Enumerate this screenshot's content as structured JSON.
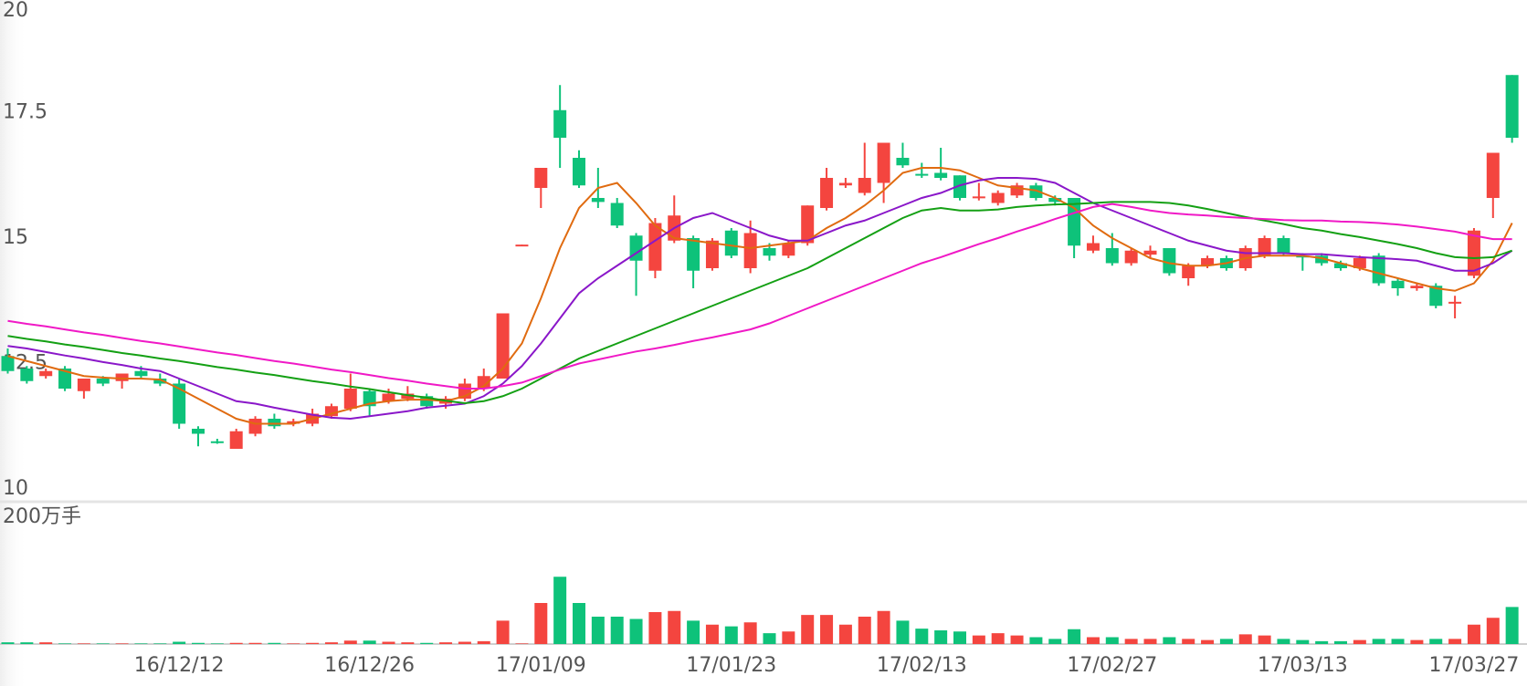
{
  "chart_data": [
    {
      "type": "candlestick",
      "ylim": [
        10,
        20
      ],
      "yticks": [
        10,
        12.5,
        15,
        17.5,
        20
      ],
      "grid": false,
      "up_color": "#f4453f",
      "down_color": "#0ec27a",
      "open": [
        12.65,
        12.4,
        12.25,
        12.4,
        11.95,
        12.2,
        12.15,
        12.35,
        12.2,
        12.1,
        11.2,
        10.95,
        10.8,
        11.1,
        11.4,
        11.3,
        11.3,
        11.45,
        11.6,
        11.95,
        11.75,
        11.8,
        11.85,
        11.7,
        11.8,
        12.0,
        12.2,
        14.85,
        16.0,
        17.55,
        16.6,
        15.8,
        15.7,
        15.05,
        14.35,
        14.95,
        15.0,
        14.4,
        15.15,
        14.4,
        14.8,
        14.65,
        14.9,
        15.6,
        16.05,
        15.9,
        16.1,
        16.6,
        16.28,
        16.3,
        16.25,
        15.8,
        15.7,
        15.85,
        16.05,
        15.8,
        15.8,
        14.75,
        14.8,
        14.5,
        14.67,
        14.8,
        14.2,
        14.45,
        14.6,
        14.4,
        14.65,
        15.0,
        14.65,
        14.65,
        14.5,
        14.4,
        14.65,
        14.15,
        14.0,
        14.05,
        13.7,
        14.25,
        15.8,
        18.25
      ],
      "high": [
        12.8,
        12.45,
        12.4,
        12.45,
        12.2,
        12.25,
        12.3,
        12.45,
        12.3,
        12.2,
        11.25,
        11.0,
        11.2,
        11.45,
        11.5,
        11.4,
        11.6,
        11.7,
        12.3,
        12.0,
        12.0,
        12.05,
        11.9,
        11.85,
        12.2,
        12.4,
        13.5,
        14.87,
        16.4,
        18.05,
        16.75,
        16.4,
        15.8,
        15.1,
        15.4,
        15.85,
        15.05,
        15.0,
        15.2,
        15.35,
        14.9,
        14.95,
        15.65,
        16.4,
        16.2,
        16.9,
        16.9,
        16.9,
        16.5,
        16.8,
        16.25,
        16.1,
        15.95,
        16.1,
        16.1,
        15.85,
        15.8,
        15.05,
        15.1,
        14.8,
        14.85,
        14.8,
        14.5,
        14.65,
        14.65,
        14.85,
        15.05,
        15.05,
        14.7,
        14.7,
        14.55,
        14.65,
        14.7,
        14.2,
        14.1,
        14.1,
        13.85,
        15.2,
        16.7,
        18.25
      ],
      "low": [
        12.3,
        12.1,
        12.2,
        11.95,
        11.8,
        12.05,
        12.0,
        12.2,
        12.05,
        11.2,
        10.85,
        10.9,
        10.8,
        11.05,
        11.2,
        11.25,
        11.25,
        11.4,
        11.55,
        11.45,
        11.7,
        11.75,
        11.6,
        11.6,
        11.75,
        11.95,
        12.2,
        14.85,
        15.6,
        16.4,
        16.0,
        15.6,
        15.2,
        13.85,
        14.2,
        14.9,
        14.0,
        14.35,
        14.6,
        14.3,
        14.55,
        14.6,
        14.85,
        15.55,
        16.0,
        15.85,
        15.7,
        16.4,
        16.2,
        16.15,
        15.75,
        15.75,
        15.65,
        15.8,
        15.75,
        15.65,
        14.6,
        14.7,
        14.45,
        14.45,
        14.6,
        14.25,
        14.05,
        14.4,
        14.35,
        14.35,
        14.6,
        14.65,
        14.35,
        14.45,
        14.35,
        14.35,
        14.05,
        13.85,
        13.95,
        13.6,
        13.4,
        14.2,
        15.4,
        16.9
      ],
      "close": [
        12.35,
        12.15,
        12.35,
        12.0,
        12.2,
        12.1,
        12.3,
        12.25,
        12.1,
        11.3,
        11.1,
        10.93,
        11.15,
        11.4,
        11.25,
        11.35,
        11.5,
        11.65,
        12.0,
        11.65,
        11.9,
        11.9,
        11.65,
        11.8,
        12.1,
        12.25,
        13.5,
        14.87,
        16.4,
        17.0,
        16.05,
        15.72,
        15.25,
        14.55,
        15.3,
        15.45,
        14.35,
        14.95,
        14.65,
        15.1,
        14.65,
        14.9,
        15.65,
        16.2,
        16.1,
        16.2,
        16.9,
        16.45,
        16.25,
        16.2,
        15.8,
        15.83,
        15.9,
        16.05,
        15.8,
        15.72,
        14.85,
        14.9,
        14.5,
        14.75,
        14.75,
        14.3,
        14.45,
        14.6,
        14.4,
        14.8,
        15.0,
        14.7,
        14.62,
        14.5,
        14.4,
        14.6,
        14.1,
        14.0,
        14.05,
        13.65,
        13.73,
        15.15,
        16.7,
        17.0
      ],
      "series": [
        {
          "color": "#e06b10",
          "values": [
            12.65,
            12.55,
            12.45,
            12.35,
            12.25,
            12.22,
            12.2,
            12.2,
            12.18,
            12.0,
            11.8,
            11.6,
            11.4,
            11.3,
            11.3,
            11.3,
            11.4,
            11.5,
            11.6,
            11.7,
            11.75,
            11.78,
            11.78,
            11.75,
            11.85,
            12.05,
            12.4,
            12.9,
            13.8,
            14.8,
            15.6,
            16.0,
            16.1,
            15.7,
            15.25,
            15.0,
            14.95,
            14.9,
            14.85,
            14.8,
            14.85,
            14.9,
            14.95,
            15.2,
            15.4,
            15.65,
            15.95,
            16.3,
            16.4,
            16.4,
            16.35,
            16.2,
            16.05,
            16.0,
            15.95,
            15.8,
            15.6,
            15.25,
            15.0,
            14.8,
            14.6,
            14.5,
            14.45,
            14.45,
            14.5,
            14.6,
            14.65,
            14.65,
            14.65,
            14.6,
            14.5,
            14.4,
            14.3,
            14.2,
            14.1,
            14.0,
            13.95,
            14.1,
            14.55,
            15.3
          ]
        },
        {
          "color": "#8a17c9",
          "values": [
            12.85,
            12.8,
            12.73,
            12.66,
            12.6,
            12.53,
            12.47,
            12.4,
            12.35,
            12.2,
            12.05,
            11.9,
            11.75,
            11.7,
            11.62,
            11.55,
            11.48,
            11.42,
            11.4,
            11.45,
            11.5,
            11.55,
            11.62,
            11.66,
            11.7,
            11.85,
            12.1,
            12.45,
            12.9,
            13.4,
            13.9,
            14.2,
            14.45,
            14.7,
            14.95,
            15.2,
            15.4,
            15.5,
            15.35,
            15.2,
            15.05,
            14.95,
            14.95,
            15.1,
            15.25,
            15.35,
            15.5,
            15.65,
            15.8,
            15.9,
            16.05,
            16.15,
            16.2,
            16.2,
            16.18,
            16.1,
            15.9,
            15.7,
            15.55,
            15.4,
            15.25,
            15.1,
            14.95,
            14.85,
            14.75,
            14.7,
            14.7,
            14.7,
            14.68,
            14.68,
            14.65,
            14.62,
            14.6,
            14.58,
            14.55,
            14.45,
            14.35,
            14.35,
            14.5,
            14.75
          ]
        },
        {
          "color": "#14a014",
          "values": [
            13.05,
            12.99,
            12.94,
            12.88,
            12.83,
            12.77,
            12.71,
            12.66,
            12.6,
            12.55,
            12.49,
            12.43,
            12.38,
            12.32,
            12.27,
            12.21,
            12.15,
            12.1,
            12.04,
            11.99,
            11.93,
            11.87,
            11.82,
            11.76,
            11.71,
            11.75,
            11.85,
            12.0,
            12.2,
            12.4,
            12.6,
            12.75,
            12.9,
            13.05,
            13.2,
            13.35,
            13.5,
            13.65,
            13.8,
            13.95,
            14.1,
            14.25,
            14.4,
            14.6,
            14.8,
            15.0,
            15.2,
            15.4,
            15.55,
            15.6,
            15.55,
            15.55,
            15.57,
            15.62,
            15.65,
            15.67,
            15.68,
            15.7,
            15.72,
            15.72,
            15.72,
            15.7,
            15.65,
            15.58,
            15.5,
            15.42,
            15.35,
            15.28,
            15.2,
            15.15,
            15.08,
            15.02,
            14.95,
            14.88,
            14.8,
            14.7,
            14.62,
            14.6,
            14.62,
            14.75
          ]
        },
        {
          "color": "#f019c6",
          "values": [
            13.35,
            13.29,
            13.24,
            13.18,
            13.12,
            13.07,
            13.01,
            12.95,
            12.9,
            12.84,
            12.78,
            12.72,
            12.67,
            12.61,
            12.55,
            12.5,
            12.44,
            12.38,
            12.33,
            12.27,
            12.21,
            12.16,
            12.1,
            12.05,
            12.0,
            12.0,
            12.05,
            12.12,
            12.25,
            12.38,
            12.5,
            12.58,
            12.66,
            12.74,
            12.8,
            12.87,
            12.95,
            13.02,
            13.1,
            13.18,
            13.3,
            13.45,
            13.6,
            13.75,
            13.9,
            14.05,
            14.2,
            14.35,
            14.5,
            14.62,
            14.75,
            14.88,
            15.0,
            15.13,
            15.25,
            15.38,
            15.5,
            15.62,
            15.68,
            15.62,
            15.55,
            15.5,
            15.47,
            15.45,
            15.42,
            15.4,
            15.38,
            15.36,
            15.35,
            15.35,
            15.33,
            15.32,
            15.3,
            15.27,
            15.23,
            15.18,
            15.13,
            15.05,
            14.98,
            14.98
          ]
        }
      ]
    },
    {
      "type": "bar",
      "ylim": [
        0,
        200
      ],
      "yticks": [
        {
          "value": 200,
          "label": "200万手"
        }
      ],
      "grid": false,
      "categories": [
        null,
        null,
        null,
        null,
        null,
        null,
        null,
        null,
        null,
        "16/12/12",
        null,
        null,
        null,
        null,
        null,
        null,
        null,
        null,
        null,
        "16/12/26",
        null,
        null,
        null,
        null,
        null,
        null,
        null,
        null,
        "17/01/09",
        null,
        null,
        null,
        null,
        null,
        null,
        null,
        null,
        null,
        "17/01/23",
        null,
        null,
        null,
        null,
        null,
        null,
        null,
        null,
        null,
        "17/02/13",
        null,
        null,
        null,
        null,
        null,
        null,
        null,
        null,
        null,
        "17/02/27",
        null,
        null,
        null,
        null,
        null,
        null,
        null,
        null,
        null,
        "17/03/13",
        null,
        null,
        null,
        null,
        null,
        null,
        null,
        null,
        "17/03/27",
        null,
        null
      ],
      "values": [
        3,
        3,
        3,
        1,
        1,
        1,
        1,
        1,
        1,
        4,
        2,
        1,
        2,
        2,
        2,
        1,
        2,
        3,
        6,
        6,
        4,
        3,
        2,
        3,
        4,
        5,
        41,
        1,
        72,
        118,
        72,
        48,
        48,
        44,
        56,
        58,
        41,
        34,
        31,
        38,
        19,
        22,
        51,
        51,
        34,
        48,
        58,
        41,
        27,
        24,
        22,
        15,
        19,
        15,
        12,
        9,
        26,
        12,
        12,
        9,
        9,
        12,
        9,
        7,
        9,
        17,
        15,
        9,
        7,
        5,
        5,
        7,
        9,
        9,
        7,
        9,
        9,
        34,
        46,
        65
      ]
    }
  ]
}
